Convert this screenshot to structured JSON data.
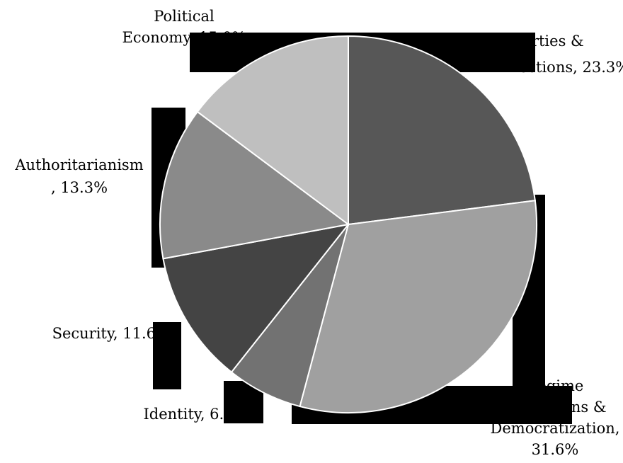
{
  "chart_data": {
    "type": "pie",
    "title": "",
    "start_angle_deg": 0,
    "direction": "clockwise",
    "slices": [
      {
        "name": "Parties & Elections",
        "value": 23.3,
        "label_lines": [
          "Parties &",
          "Elections, 23.3%"
        ],
        "color": "#575757"
      },
      {
        "name": "Regime Transitions & Democratization",
        "value": 31.6,
        "label_lines": [
          "Regime",
          "Transitions &",
          "Democratization,",
          "31.6%"
        ],
        "color": "#a0a0a0"
      },
      {
        "name": "Identity",
        "value": 6.6,
        "label_lines": [
          "Identity, 6.6%"
        ],
        "color": "#727272"
      },
      {
        "name": "Security",
        "value": 11.6,
        "label_lines": [
          "Security, 11.6%"
        ],
        "color": "#444444"
      },
      {
        "name": "Authoritarianism",
        "value": 13.3,
        "label_lines": [
          "Authoritarianism",
          ", 13.3%"
        ],
        "color": "#8a8a8a"
      },
      {
        "name": "Political Economy",
        "value": 15.0,
        "label_lines": [
          "Political",
          "Economy, 15.0%"
        ],
        "color": "#bfbfbf"
      }
    ]
  }
}
